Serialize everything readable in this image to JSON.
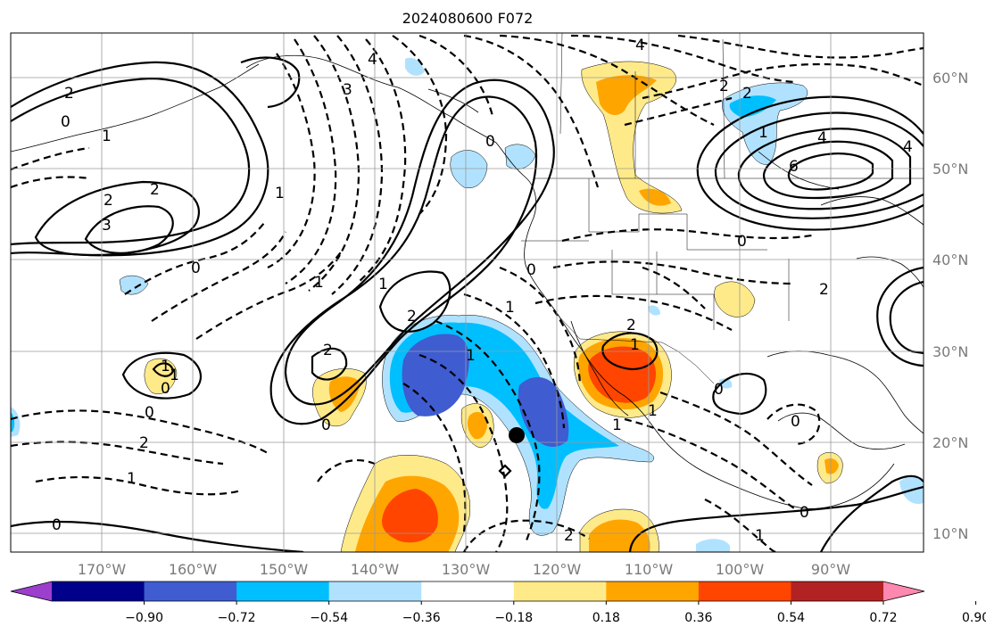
{
  "title": "2024080600 F072",
  "map": {
    "lon_labels": [
      "170°W",
      "160°W",
      "150°W",
      "140°W",
      "130°W",
      "120°W",
      "110°W",
      "100°W",
      "90°W"
    ],
    "lat_labels": [
      "60°N",
      "50°N",
      "40°N",
      "30°N",
      "20°N",
      "10°N"
    ],
    "contour_labels": [
      "2",
      "0",
      "2",
      "3",
      "2",
      "1",
      "3",
      "4",
      "4",
      "2",
      "1",
      "0",
      "4",
      "6",
      "4",
      "2",
      "1",
      "0",
      "2",
      "1",
      "1",
      "0",
      "2",
      "0",
      "1",
      "0",
      "1",
      "2",
      "1",
      "0",
      "0",
      "2",
      "1",
      "0",
      "1",
      "0",
      "1",
      "0",
      "1",
      "2",
      "1",
      "2"
    ],
    "marker": {
      "lon": -125.0,
      "lat": 20.8,
      "label": "storm-center"
    }
  },
  "colorbar": {
    "tick_labels": [
      "−0.90",
      "−0.72",
      "−0.54",
      "−0.36",
      "−0.18",
      "0.18",
      "0.36",
      "0.54",
      "0.72",
      "0.90"
    ],
    "colors": [
      "#9b3fcc",
      "#00008a",
      "#3f5cd1",
      "#00bfff",
      "#b0e2ff",
      "#ffffff",
      "#ffea8a",
      "#ffa500",
      "#ff4500",
      "#b22222",
      "#ff88b0"
    ]
  },
  "fill_colors": {
    "yellow": "#ffea8a",
    "orange": "#ffa500",
    "red": "#ff4500",
    "lightblue": "#b0e2ff",
    "blue": "#00bfff",
    "darkblue": "#3f5cd1"
  }
}
